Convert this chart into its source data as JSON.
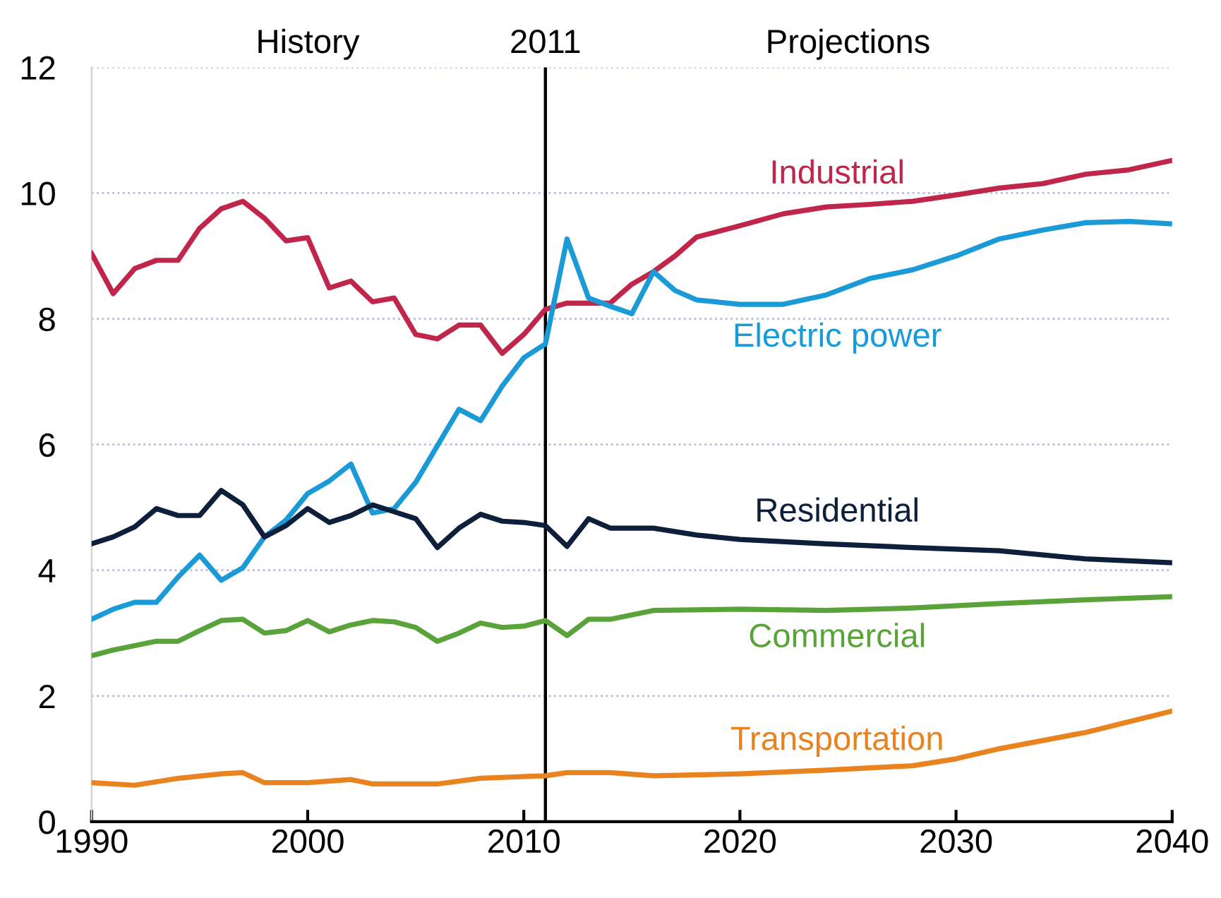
{
  "chart_data": {
    "type": "line",
    "xlim": [
      1990,
      2040
    ],
    "xticks": [
      1990,
      2000,
      2010,
      2020,
      2030,
      2040
    ],
    "ylim": [
      0,
      12
    ],
    "yticks": [
      0,
      2,
      4,
      6,
      8,
      10,
      12
    ],
    "grid": "y",
    "legend": false,
    "marker": "none",
    "line_style": "solid",
    "annotations": [
      "History",
      "Projections"
    ],
    "ref_lines": [
      {
        "axis": "x",
        "value": 2011,
        "label": "2011",
        "color": "#000000"
      }
    ],
    "series": [
      {
        "name": "Industrial",
        "color": "#c0254a",
        "x": [
          1990,
          1991,
          1992,
          1993,
          1994,
          1995,
          1996,
          1997,
          1998,
          1999,
          2000,
          2001,
          2002,
          2003,
          2004,
          2005,
          2006,
          2007,
          2008,
          2009,
          2010,
          2011,
          2012,
          2013,
          2014,
          2015,
          2016,
          2017,
          2018,
          2020,
          2022,
          2024,
          2026,
          2028,
          2030,
          2032,
          2034,
          2036,
          2038,
          2040
        ],
        "values": [
          9.04,
          8.4,
          8.8,
          8.93,
          8.93,
          9.44,
          9.75,
          9.87,
          9.6,
          9.24,
          9.29,
          8.49,
          8.6,
          8.27,
          8.33,
          7.75,
          7.68,
          7.9,
          7.9,
          7.45,
          7.75,
          8.15,
          8.25,
          8.25,
          8.25,
          8.55,
          8.75,
          9.0,
          9.3,
          9.48,
          9.67,
          9.78,
          9.82,
          9.87,
          9.97,
          10.08,
          10.15,
          10.3,
          10.37,
          10.52
        ]
      },
      {
        "name": "Electric power",
        "color": "#1a9ad6",
        "x": [
          1990,
          1991,
          1992,
          1993,
          1994,
          1995,
          1996,
          1997,
          1998,
          1999,
          2000,
          2001,
          2002,
          2003,
          2004,
          2005,
          2006,
          2007,
          2008,
          2009,
          2010,
          2011,
          2012,
          2013,
          2014,
          2015,
          2016,
          2017,
          2018,
          2020,
          2022,
          2024,
          2026,
          2028,
          2030,
          2032,
          2034,
          2036,
          2038,
          2040
        ],
        "values": [
          3.22,
          3.38,
          3.49,
          3.49,
          3.89,
          4.24,
          3.84,
          4.04,
          4.53,
          4.8,
          5.22,
          5.42,
          5.69,
          4.91,
          4.98,
          5.4,
          5.98,
          6.56,
          6.38,
          6.93,
          7.38,
          7.6,
          9.27,
          8.33,
          8.2,
          8.08,
          8.75,
          8.45,
          8.3,
          8.23,
          8.23,
          8.38,
          8.64,
          8.78,
          9.0,
          9.27,
          9.41,
          9.53,
          9.55,
          9.51
        ]
      },
      {
        "name": "Residential",
        "color": "#0d1f3a",
        "x": [
          1990,
          1991,
          1992,
          1993,
          1994,
          1995,
          1996,
          1997,
          1998,
          1999,
          2000,
          2001,
          2002,
          2003,
          2004,
          2005,
          2006,
          2007,
          2008,
          2009,
          2010,
          2011,
          2012,
          2013,
          2014,
          2016,
          2018,
          2020,
          2024,
          2028,
          2032,
          2036,
          2040
        ],
        "values": [
          4.42,
          4.53,
          4.69,
          4.98,
          4.87,
          4.87,
          5.27,
          5.04,
          4.53,
          4.71,
          4.98,
          4.76,
          4.87,
          5.04,
          4.93,
          4.82,
          4.36,
          4.67,
          4.89,
          4.78,
          4.76,
          4.71,
          4.38,
          4.82,
          4.67,
          4.67,
          4.56,
          4.49,
          4.42,
          4.36,
          4.31,
          4.18,
          4.12
        ]
      },
      {
        "name": "Commercial",
        "color": "#5aa33a",
        "x": [
          1990,
          1991,
          1992,
          1993,
          1994,
          1995,
          1996,
          1997,
          1998,
          1999,
          2000,
          2001,
          2002,
          2003,
          2004,
          2005,
          2006,
          2007,
          2008,
          2009,
          2010,
          2011,
          2012,
          2013,
          2014,
          2016,
          2020,
          2024,
          2028,
          2032,
          2036,
          2040
        ],
        "values": [
          2.64,
          2.73,
          2.8,
          2.87,
          2.87,
          3.04,
          3.2,
          3.22,
          3.0,
          3.04,
          3.2,
          3.02,
          3.13,
          3.2,
          3.18,
          3.09,
          2.87,
          3.0,
          3.16,
          3.09,
          3.11,
          3.2,
          2.96,
          3.22,
          3.22,
          3.36,
          3.38,
          3.36,
          3.4,
          3.47,
          3.53,
          3.58
        ]
      },
      {
        "name": "Transportation",
        "color": "#e8831f",
        "x": [
          1990,
          1992,
          1994,
          1996,
          1997,
          1998,
          2000,
          2002,
          2003,
          2006,
          2008,
          2011,
          2012,
          2014,
          2016,
          2020,
          2024,
          2028,
          2030,
          2032,
          2036,
          2040
        ],
        "values": [
          0.62,
          0.58,
          0.69,
          0.76,
          0.78,
          0.62,
          0.62,
          0.67,
          0.6,
          0.6,
          0.69,
          0.73,
          0.78,
          0.78,
          0.73,
          0.76,
          0.82,
          0.89,
          1.0,
          1.16,
          1.42,
          1.76
        ]
      }
    ]
  }
}
